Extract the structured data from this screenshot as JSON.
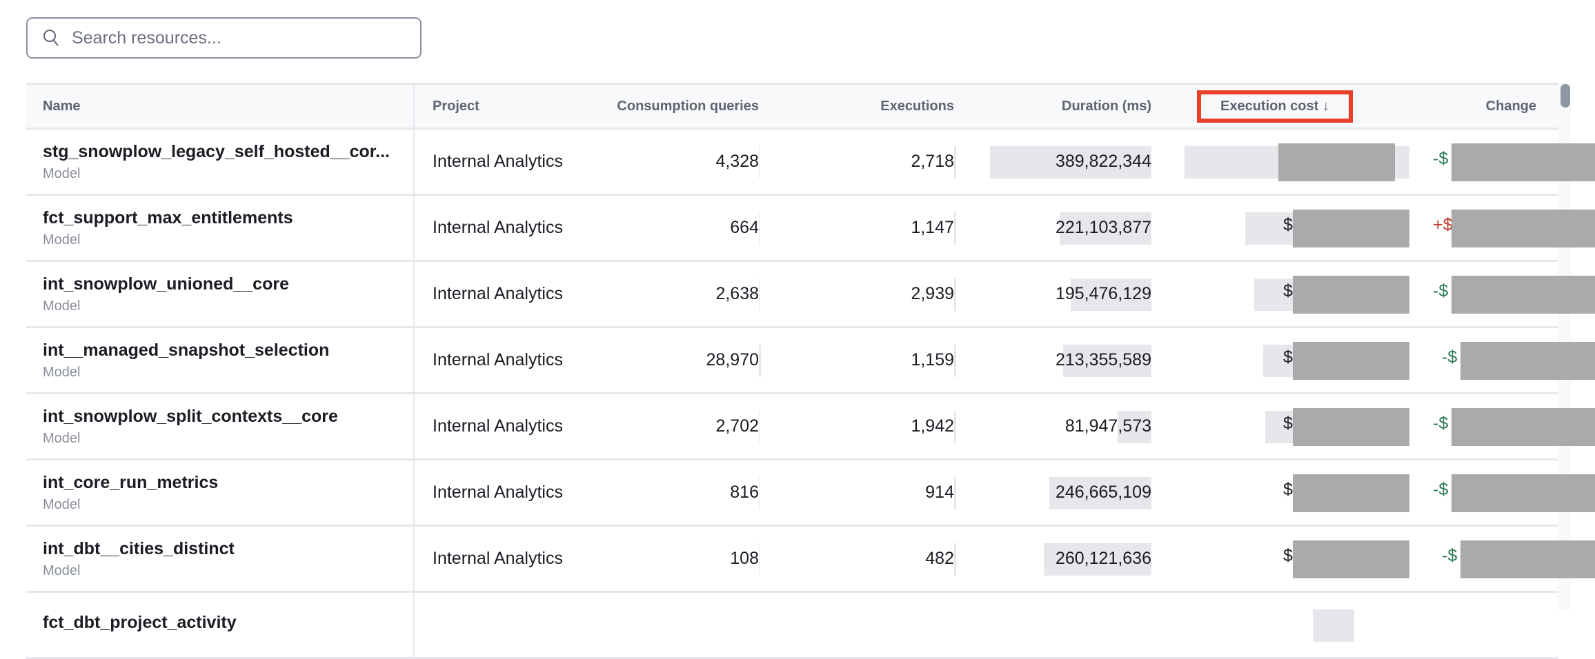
{
  "search": {
    "placeholder": "Search resources...",
    "value": "",
    "icon": "search-icon"
  },
  "columns": {
    "name": "Name",
    "project": "Project",
    "consumption_queries": "Consumption queries",
    "executions": "Executions",
    "duration": "Duration (ms)",
    "execution_cost": "Execution cost",
    "execution_cost_sort": "↓",
    "change": "Change"
  },
  "sort": {
    "column": "Execution cost",
    "direction": "descending"
  },
  "colors": {
    "highlight": "#e8412a",
    "decrease": "#2f7d57",
    "increase": "#c0392b",
    "bar": "#e6e7eb",
    "redaction": "#aaaaaa"
  },
  "rows": [
    {
      "name": "stg_snowplow_legacy_self_hosted__cor...",
      "type": "Model",
      "project": "Internal Analytics",
      "consumption_queries": "4,328",
      "executions": "2,718",
      "duration_ms": "389,822,344",
      "cost_prefix": "$",
      "cost_bar": 1.0,
      "change_prefix": "-$",
      "change_dir": "down"
    },
    {
      "name": "fct_support_max_entitlements",
      "type": "Model",
      "project": "Internal Analytics",
      "consumption_queries": "664",
      "executions": "1,147",
      "duration_ms": "221,103,877",
      "cost_prefix": "$",
      "cost_bar": 0.73,
      "change_prefix": "+$",
      "change_dir": "up"
    },
    {
      "name": "int_snowplow_unioned__core",
      "type": "Model",
      "project": "Internal Analytics",
      "consumption_queries": "2,638",
      "executions": "2,939",
      "duration_ms": "195,476,129",
      "cost_prefix": "$",
      "cost_bar": 0.69,
      "change_prefix": "-$",
      "change_dir": "down"
    },
    {
      "name": "int__managed_snapshot_selection",
      "type": "Model",
      "project": "Internal Analytics",
      "consumption_queries": "28,970",
      "executions": "1,159",
      "duration_ms": "213,355,589",
      "cost_prefix": "$",
      "cost_bar": 0.65,
      "change_prefix": "-$",
      "change_dir": "down"
    },
    {
      "name": "int_snowplow_split_contexts__core",
      "type": "Model",
      "project": "Internal Analytics",
      "consumption_queries": "2,702",
      "executions": "1,942",
      "duration_ms": "81,947,573",
      "cost_prefix": "$",
      "cost_bar": 0.64,
      "change_prefix": "-$",
      "change_dir": "down"
    },
    {
      "name": "int_core_run_metrics",
      "type": "Model",
      "project": "Internal Analytics",
      "consumption_queries": "816",
      "executions": "914",
      "duration_ms": "246,665,109",
      "cost_prefix": "$",
      "cost_bar": 0.5,
      "change_prefix": "-$",
      "change_dir": "down"
    },
    {
      "name": "int_dbt__cities_distinct",
      "type": "Model",
      "project": "Internal Analytics",
      "consumption_queries": "108",
      "executions": "482",
      "duration_ms": "260,121,636",
      "cost_prefix": "$",
      "cost_bar": 0.5,
      "change_prefix": "-$",
      "change_dir": "down"
    },
    {
      "name": "fct_dbt_project_activity",
      "type": "",
      "project": "",
      "consumption_queries": "",
      "executions": "",
      "duration_ms": "",
      "cost_prefix": "",
      "cost_bar": 0.3,
      "change_prefix": "",
      "change_dir": ""
    }
  ]
}
